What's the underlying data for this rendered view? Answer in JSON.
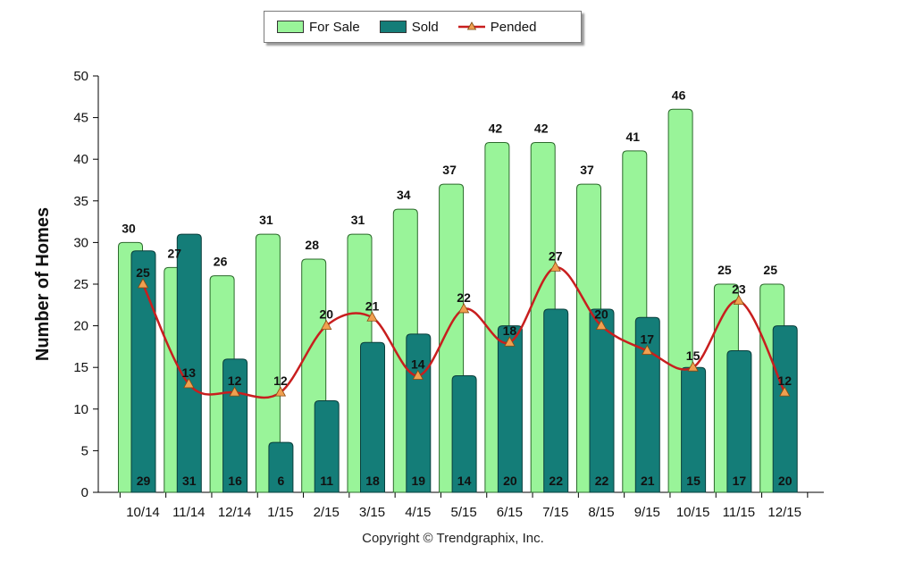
{
  "legend": {
    "for_sale": "For Sale",
    "sold": "Sold",
    "pended": "Pended"
  },
  "footer": {
    "copyright": "Copyright © Trendgraphix, Inc."
  },
  "chart_data": {
    "type": "bar",
    "categories": [
      "10/14",
      "11/14",
      "12/14",
      "1/15",
      "2/15",
      "3/15",
      "4/15",
      "5/15",
      "6/15",
      "7/15",
      "8/15",
      "9/15",
      "10/15",
      "11/15",
      "12/15"
    ],
    "series": [
      {
        "name": "For Sale",
        "type": "bar",
        "color": "#99f499",
        "values": [
          30,
          27,
          26,
          31,
          28,
          31,
          34,
          37,
          42,
          42,
          37,
          41,
          46,
          25,
          25
        ]
      },
      {
        "name": "Sold",
        "type": "bar",
        "color": "#147d78",
        "values": [
          29,
          31,
          16,
          6,
          11,
          18,
          19,
          14,
          20,
          22,
          22,
          21,
          15,
          17,
          20
        ]
      },
      {
        "name": "Pended",
        "type": "line",
        "color": "#c81e1e",
        "marker_color": "#f0a050",
        "values": [
          25,
          13,
          12,
          12,
          20,
          21,
          14,
          22,
          18,
          27,
          20,
          17,
          15,
          23,
          12
        ]
      }
    ],
    "title": "",
    "xlabel": "",
    "ylabel": "Number of Homes",
    "ylim": [
      0,
      50
    ],
    "yticks": [
      0,
      5,
      10,
      15,
      20,
      25,
      30,
      35,
      40,
      45,
      50
    ],
    "grid": false,
    "legend_position": "top"
  }
}
